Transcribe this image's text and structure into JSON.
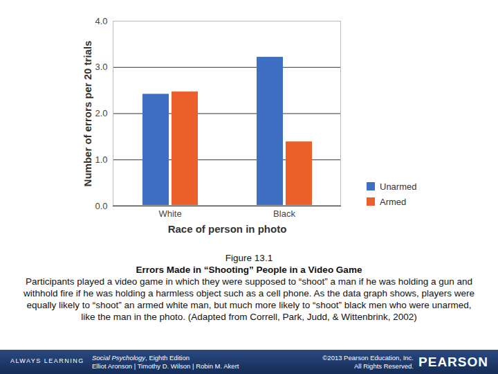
{
  "chart_data": {
    "type": "bar",
    "categories": [
      "White",
      "Black"
    ],
    "series": [
      {
        "name": "Unarmed",
        "color": "#3f6fc2",
        "values": [
          2.42,
          3.22
        ]
      },
      {
        "name": "Armed",
        "color": "#ea5f2a",
        "values": [
          2.47,
          1.39
        ]
      }
    ],
    "x_label": "Race of person in photo",
    "y_label": "Number of errors per 20 trials",
    "ylim": [
      0,
      4
    ],
    "yticks": [
      0,
      1,
      2,
      3,
      4
    ],
    "grid": true,
    "legend": "lower right"
  },
  "caption": {
    "figure": "Figure 13.1",
    "heading": "Errors Made in “Shooting” People in a Video Game",
    "text": "Participants played a video game in which they were supposed to “shoot” a man if he was holding a gun and withhold fire if he was holding a harmless object such as a cell phone. As the data graph shows, players were equally likely to “shoot” an armed white man, but much more likely to “shoot” black men who were unarmed, like the man in the photo. (Adapted from Correll, Park, Judd, & Wittenbrink, 2002)"
  },
  "footer": {
    "slogan": "ALWAYS LEARNING",
    "book_title": "Social Psychology",
    "edition": ", Eighth Edition",
    "authors": "Elliot Aronson | Timothy D. Wilson | Robin M. Akert",
    "copyright": "©2013 Pearson Education, Inc.",
    "rights": "All Rights Reserved.",
    "brand": "PEARSON"
  }
}
